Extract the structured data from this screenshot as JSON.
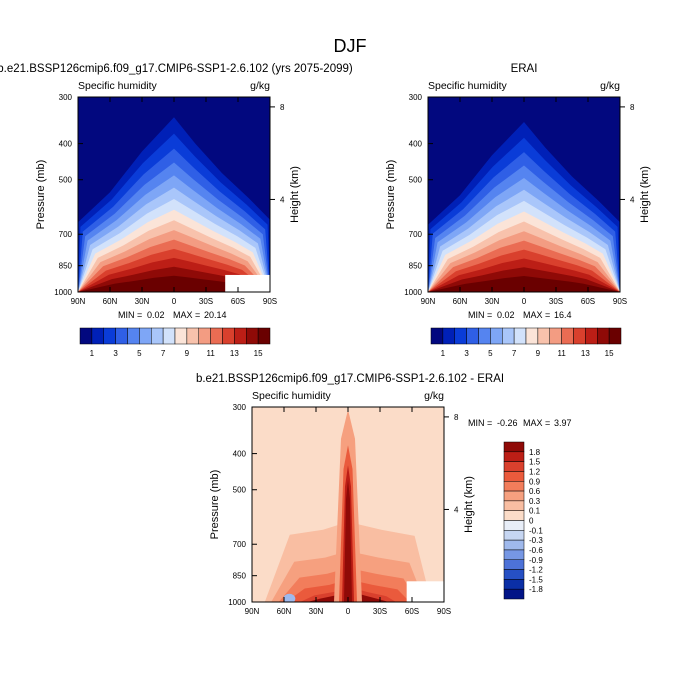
{
  "figure": {
    "title": "DJF"
  },
  "chart_data": [
    {
      "type": "heatmap",
      "panel": "model",
      "title": "b.e21.BSSP126cmip6.f09_g17.CMIP6-SSP1-2.6.102 (yrs 2075-2099)",
      "variable": "Specific humidity",
      "units": "g/kg",
      "ylabel": "Pressure (mb)",
      "ylabel_right": "Height (km)",
      "x_ticks": [
        "90N",
        "60N",
        "30N",
        "0",
        "30S",
        "60S",
        "90S"
      ],
      "y_ticks": [
        300,
        400,
        500,
        700,
        850,
        1000
      ],
      "height_ticks": [
        8,
        4
      ],
      "min": 0.02,
      "max": 20.14,
      "min_label": "MIN =",
      "max_label": "MAX =",
      "colorbar_labels": [
        "1",
        "3",
        "5",
        "7",
        "9",
        "11",
        "13",
        "15"
      ],
      "colorbar_colors": [
        "#02087f",
        "#0020b7",
        "#0a3cd8",
        "#2f5fe6",
        "#5584f0",
        "#7ea6f6",
        "#a9c6fa",
        "#d2e2fb",
        "#fbe4d8",
        "#f8c2ac",
        "#f39c82",
        "#ea6c53",
        "#d9402d",
        "#bc1e16",
        "#8f0a07",
        "#6a0000"
      ],
      "profile": [
        {
          "lat": -90,
          "p": 650
        },
        {
          "lat": -60,
          "p": 540
        },
        {
          "lat": -30,
          "p": 420
        },
        {
          "lat": 0,
          "p": 340
        },
        {
          "lat": 20,
          "p": 400
        },
        {
          "lat": 45,
          "p": 480
        },
        {
          "lat": 70,
          "p": 560
        },
        {
          "lat": 90,
          "p": 640
        }
      ],
      "surface_max": 20.14,
      "masked_region": {
        "lat_from": 48,
        "lat_to": 90,
        "p_from": 900,
        "p_to": 1000
      }
    },
    {
      "type": "heatmap",
      "panel": "obs",
      "title": "ERAI",
      "variable": "Specific humidity",
      "units": "g/kg",
      "ylabel": "Pressure (mb)",
      "ylabel_right": "Height (km)",
      "x_ticks": [
        "90N",
        "60N",
        "30N",
        "0",
        "30S",
        "60S",
        "90S"
      ],
      "y_ticks": [
        300,
        400,
        500,
        700,
        850,
        1000
      ],
      "height_ticks": [
        8,
        4
      ],
      "min": 0.02,
      "max": 16.4,
      "min_label": "MIN =",
      "max_label": "MAX =",
      "colorbar_labels": [
        "1",
        "3",
        "5",
        "7",
        "9",
        "11",
        "13",
        "15"
      ],
      "colorbar_colors": [
        "#02087f",
        "#0020b7",
        "#0a3cd8",
        "#2f5fe6",
        "#5584f0",
        "#7ea6f6",
        "#a9c6fa",
        "#d2e2fb",
        "#fbe4d8",
        "#f8c2ac",
        "#f39c82",
        "#ea6c53",
        "#d9402d",
        "#bc1e16",
        "#8f0a07",
        "#6a0000"
      ],
      "profile": [
        {
          "lat": -90,
          "p": 660
        },
        {
          "lat": -60,
          "p": 550
        },
        {
          "lat": -30,
          "p": 430
        },
        {
          "lat": 0,
          "p": 350
        },
        {
          "lat": 20,
          "p": 410
        },
        {
          "lat": 45,
          "p": 490
        },
        {
          "lat": 70,
          "p": 570
        },
        {
          "lat": 90,
          "p": 650
        }
      ],
      "surface_max": 16.4,
      "masked_region": null
    },
    {
      "type": "heatmap",
      "panel": "diff",
      "title": "b.e21.BSSP126cmip6.f09_g17.CMIP6-SSP1-2.6.102 - ERAI",
      "variable": "Specific humidity",
      "units": "g/kg",
      "ylabel": "Pressure (mb)",
      "ylabel_right": "Height (km)",
      "x_ticks": [
        "90N",
        "60N",
        "30N",
        "0",
        "30S",
        "60S",
        "90S"
      ],
      "y_ticks": [
        300,
        400,
        500,
        700,
        850,
        1000
      ],
      "height_ticks": [
        8,
        4
      ],
      "min": -0.26,
      "max": 3.97,
      "min_label": "MIN =",
      "max_label": "MAX =",
      "colorbar_labels": [
        "1.8",
        "1.5",
        "1.2",
        "0.9",
        "0.6",
        "0.3",
        "0.1",
        "0",
        "-0.1",
        "-0.3",
        "-0.6",
        "-0.9",
        "-1.2",
        "-1.5",
        "-1.8"
      ],
      "colorbar_colors": [
        "#8f0a07",
        "#bc1e16",
        "#d9402d",
        "#ea5a3c",
        "#f27d5b",
        "#f6a07f",
        "#f9bea2",
        "#fbdcc8",
        "#e8eef8",
        "#c6d6f2",
        "#9fb9ec",
        "#7697e4",
        "#4d72d8",
        "#2650c4",
        "#0b2fa6",
        "#021487"
      ],
      "masked_region": {
        "lat_from": 55,
        "lat_to": 90,
        "p_from": 880,
        "p_to": 1000
      }
    }
  ]
}
